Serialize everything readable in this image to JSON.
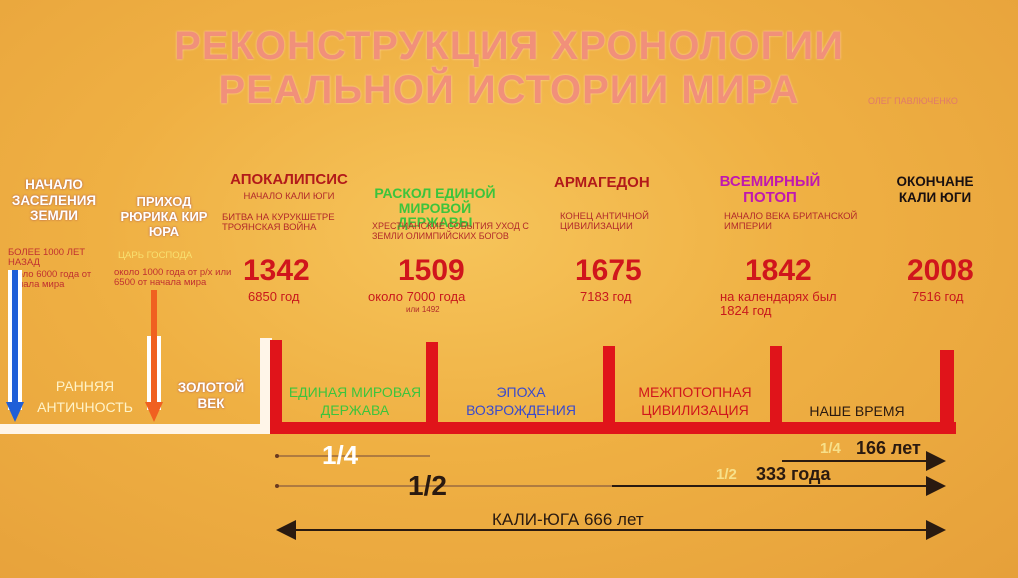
{
  "title": {
    "line1": "РЕКОНСТРУКЦИЯ ХРОНОЛОГИИ",
    "line2": "РЕАЛЬНОЙ ИСТОРИИ МИРА",
    "author": "ОЛЕГ ПАВЛЮЧЕНКО"
  },
  "left": {
    "settlement": {
      "title": "НАЧАЛО ЗАСЕЛЕНИЯ ЗЕМЛИ",
      "note1": "БОЛЕЕ 1000 ЛЕТ НАЗАД",
      "note2": "около 6000 года от начала мира"
    },
    "rurik": {
      "title": "ПРИХОД РЮРИКА КИР ЮРА",
      "subtitle": "ЦАРЬ ГОСПОДА",
      "note": "около 1000 года от р/х или 6500 от начала мира"
    }
  },
  "events": [
    {
      "name": "АПОКАЛИПСИС",
      "subtitle": "НАЧАЛО КАЛИ ЮГИ",
      "details": "БИТВА НА КУРУКШЕТРЕ ТРОЯНСКАЯ ВОЙНА",
      "year": "1342",
      "sub": "6850 год",
      "sub2": ""
    },
    {
      "name": "РАСКОЛ ЕДИНОЙ МИРОВОЙ ДЕРЖАВЫ",
      "subtitle": "",
      "details": "ХРЕСТИАНСКИЕ СОБЫТИЯ УХОД С ЗЕМЛИ ОЛИМПИЙСКИХ БОГОВ",
      "year": "1509",
      "sub": "около 7000 года",
      "sub2": "или 1492"
    },
    {
      "name": "АРМАГЕДОН",
      "subtitle": "",
      "details": "КОНЕЦ АНТИЧНОЙ ЦИВИЛИЗАЦИИ",
      "year": "1675",
      "sub": "7183 год",
      "sub2": ""
    },
    {
      "name": "ВСЕМИРНЫЙ ПОТОП",
      "subtitle": "",
      "details": "НАЧАЛО ВЕКА БРИТАНСКОЙ ИМПЕРИИ",
      "year": "1842",
      "sub": "на календарях был 1824 год",
      "sub2": ""
    },
    {
      "name": "ОКОНЧАНЕ КАЛИ ЮГИ",
      "subtitle": "",
      "details": "",
      "year": "2008",
      "sub": "7516 год",
      "sub2": ""
    }
  ],
  "eras": {
    "early": "РАННЯЯ АНТИЧНОСТЬ",
    "golden": "ЗОЛОТОЙ ВЕК",
    "unified": "ЕДИНАЯ МИРОВАЯ ДЕРЖАВА",
    "renaissance": "ЭПОХА ВОЗРОЖДЕНИЯ",
    "interflood": "МЕЖПОТОПНАЯ ЦИВИЛИЗАЦИЯ",
    "ourtime": "НАШЕ ВРЕМЯ"
  },
  "spans": {
    "quarter_left": "1/4",
    "half_left": "1/2",
    "quarter_right_frac": "1/4",
    "quarter_right_value": "166 лет",
    "half_right_frac": "1/2",
    "half_right_value": "333 года",
    "kali_yuga": "КАЛИ-ЮГА 666 лет"
  },
  "colors": {
    "red": "#e0141a",
    "blue": "#1f5fd8",
    "orange": "#f06020",
    "green": "#3cc43c",
    "magenta": "#c018b0",
    "dark": "#2a1a10"
  }
}
